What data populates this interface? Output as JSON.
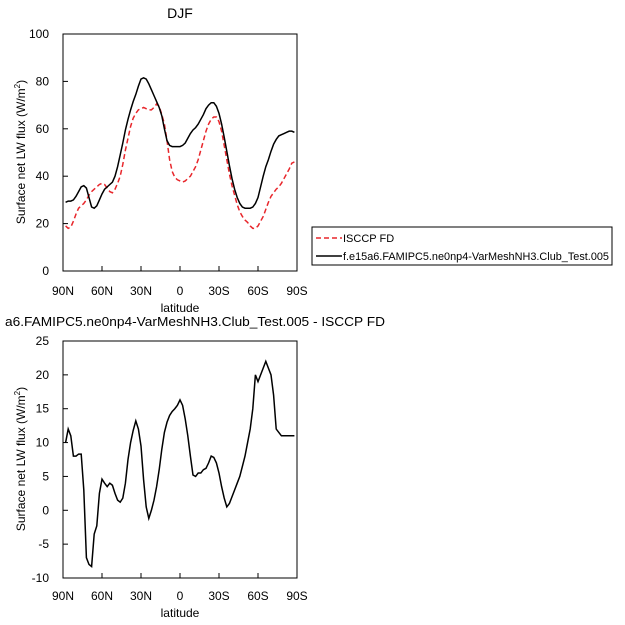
{
  "chart_data": [
    {
      "type": "line",
      "title": "DJF",
      "xlabel": "latitude",
      "ylabel_main": "Surface net LW flux (W/m",
      "ylabel_sup": "2",
      "ylabel_close": ")",
      "xlim": [
        90,
        -90
      ],
      "ylim": [
        0,
        100
      ],
      "x_ticks": [
        90,
        60,
        30,
        0,
        -30,
        -60,
        -90
      ],
      "x_tick_labels": [
        "90N",
        "60N",
        "30N",
        "0",
        "30S",
        "60S",
        "90S"
      ],
      "y_ticks": [
        0,
        20,
        40,
        60,
        80,
        100
      ],
      "y_tick_labels": [
        "0",
        "20",
        "40",
        "60",
        "80",
        "100"
      ],
      "legend_placement": "right",
      "series": [
        {
          "name": "ISCCP FD",
          "style": "dashed",
          "color": "#e8262b",
          "x": [
            88,
            86,
            84,
            82,
            80,
            78,
            76,
            74,
            72,
            70,
            68,
            66,
            64,
            62,
            60,
            58,
            56,
            54,
            52,
            50,
            48,
            46,
            44,
            42,
            40,
            38,
            36,
            34,
            32,
            30,
            28,
            26,
            24,
            22,
            20,
            18,
            16,
            14,
            12,
            10,
            8,
            6,
            4,
            2,
            0,
            -2,
            -4,
            -6,
            -8,
            -10,
            -12,
            -14,
            -16,
            -18,
            -20,
            -22,
            -24,
            -26,
            -28,
            -30,
            -32,
            -34,
            -36,
            -38,
            -40,
            -42,
            -44,
            -46,
            -48,
            -50,
            -52,
            -54,
            -56,
            -58,
            -60,
            -62,
            -64,
            -66,
            -68,
            -70,
            -72,
            -74,
            -76,
            -78,
            -80,
            -82,
            -84,
            -86,
            -88
          ],
          "y": [
            19,
            18,
            18.5,
            21,
            24,
            26.5,
            27.5,
            28.5,
            30,
            32,
            33.5,
            34.5,
            35.5,
            36.5,
            37,
            36.5,
            35,
            33.5,
            33,
            34.5,
            37,
            40,
            45,
            51,
            56,
            61,
            64.5,
            66.5,
            68,
            68.5,
            69,
            68.5,
            68,
            68,
            69,
            70.5,
            69.5,
            66,
            62,
            55,
            47,
            42,
            39.5,
            38.5,
            38,
            37.5,
            38,
            39,
            40,
            42,
            44,
            47,
            51,
            55,
            59,
            62,
            64,
            65,
            65,
            63,
            59,
            53,
            47,
            41,
            36,
            32,
            28,
            25,
            23,
            21.5,
            20.5,
            19,
            18,
            18,
            19,
            21,
            23,
            26,
            29,
            31.5,
            33,
            34.5,
            35.5,
            37,
            39,
            41,
            43,
            45.5,
            46
          ]
        },
        {
          "name": "f.e15a6.FAMIPC5.ne0np4-VarMeshNH3.Club_Test.005",
          "style": "solid",
          "color": "#000000",
          "x": [
            88,
            86,
            84,
            82,
            80,
            78,
            76,
            74,
            72,
            70,
            68,
            66,
            64,
            62,
            60,
            58,
            56,
            54,
            52,
            50,
            48,
            46,
            44,
            42,
            40,
            38,
            36,
            34,
            32,
            30,
            28,
            26,
            24,
            22,
            20,
            18,
            16,
            14,
            12,
            10,
            8,
            6,
            4,
            2,
            0,
            -2,
            -4,
            -6,
            -8,
            -10,
            -12,
            -14,
            -16,
            -18,
            -20,
            -22,
            -24,
            -26,
            -28,
            -30,
            -32,
            -34,
            -36,
            -38,
            -40,
            -42,
            -44,
            -46,
            -48,
            -50,
            -52,
            -54,
            -56,
            -58,
            -60,
            -62,
            -64,
            -66,
            -68,
            -70,
            -72,
            -74,
            -76,
            -78,
            -80,
            -82,
            -84,
            -86,
            -88
          ],
          "y": [
            29,
            29.5,
            29.5,
            30,
            31.5,
            33.5,
            35.5,
            36,
            35,
            31,
            27,
            26.5,
            27.5,
            30,
            32.5,
            34.5,
            35.5,
            36.5,
            37.5,
            40,
            44,
            49,
            54,
            59.5,
            64,
            68,
            71.5,
            74.5,
            78,
            81,
            81.5,
            81,
            79,
            76.5,
            74,
            71.5,
            69,
            65.5,
            60,
            55,
            53,
            52.5,
            52.5,
            52.5,
            52.5,
            53,
            54,
            56,
            58,
            59.5,
            60.5,
            62,
            64,
            66,
            68.5,
            70,
            71,
            71,
            69.5,
            66.5,
            62,
            56.5,
            50.5,
            44.5,
            39,
            34.5,
            31,
            28.5,
            27,
            26.5,
            26.5,
            26.5,
            27,
            28.5,
            31,
            35.5,
            40,
            44,
            47,
            50.5,
            53.5,
            55.5,
            57,
            57.5,
            58,
            58.5,
            59,
            59,
            58.5
          ]
        }
      ]
    },
    {
      "type": "line",
      "title": "a6.FAMIPC5.ne0np4-VarMeshNH3.Club_Test.005 - ISCCP FD",
      "xlabel": "latitude",
      "ylabel_main": "Surface net LW flux (W/m",
      "ylabel_sup": "2",
      "ylabel_close": ")",
      "xlim": [
        90,
        -90
      ],
      "ylim": [
        -10,
        25
      ],
      "x_ticks": [
        90,
        60,
        30,
        0,
        -30,
        -60,
        -90
      ],
      "x_tick_labels": [
        "90N",
        "60N",
        "30N",
        "0",
        "30S",
        "60S",
        "90S"
      ],
      "y_ticks": [
        -10,
        -5,
        0,
        5,
        10,
        15,
        20,
        25
      ],
      "y_tick_labels": [
        "-10",
        "-5",
        "0",
        "5",
        "10",
        "15",
        "20",
        "25"
      ],
      "series": [
        {
          "style": "solid",
          "color": "#000000",
          "x": [
            88,
            86,
            84,
            82,
            80,
            78,
            76,
            74,
            72,
            70,
            68,
            66,
            64,
            62,
            60,
            58,
            56,
            54,
            52,
            50,
            48,
            46,
            44,
            42,
            40,
            38,
            36,
            34,
            32,
            30,
            28,
            26,
            24,
            22,
            20,
            18,
            16,
            14,
            12,
            10,
            8,
            6,
            4,
            2,
            0,
            -2,
            -4,
            -6,
            -8,
            -10,
            -12,
            -14,
            -16,
            -18,
            -20,
            -22,
            -24,
            -26,
            -28,
            -30,
            -32,
            -34,
            -36,
            -38,
            -40,
            -42,
            -44,
            -46,
            -48,
            -50,
            -52,
            -54,
            -56,
            -58,
            -60,
            -62,
            -64,
            -66,
            -68,
            -70,
            -72,
            -74,
            -76,
            -78,
            -80,
            -82,
            -84,
            -86,
            -88
          ],
          "y": [
            10,
            12,
            11,
            8,
            8,
            8.3,
            8.3,
            3,
            -7,
            -8,
            -8.3,
            -3.5,
            -2.3,
            2.5,
            4.6,
            4,
            3.5,
            4,
            3.7,
            2.5,
            1.5,
            1.2,
            1.8,
            4,
            7.5,
            10,
            11.8,
            13.2,
            12,
            9.5,
            4.5,
            0.5,
            -1.2,
            0,
            1.5,
            3.5,
            6,
            9,
            11.5,
            13,
            14,
            14.6,
            15,
            15.5,
            16.3,
            15.5,
            13.5,
            11,
            8,
            5.2,
            5,
            5.5,
            5.5,
            6,
            6.2,
            7,
            8,
            7.8,
            7,
            5.5,
            3.5,
            1.8,
            0.5,
            1,
            2,
            3,
            4,
            5,
            6.5,
            8,
            10,
            12,
            15,
            20,
            19,
            20,
            21,
            22,
            21,
            20,
            17,
            12,
            11.5,
            11,
            11,
            11,
            11,
            11,
            11
          ]
        }
      ]
    }
  ]
}
